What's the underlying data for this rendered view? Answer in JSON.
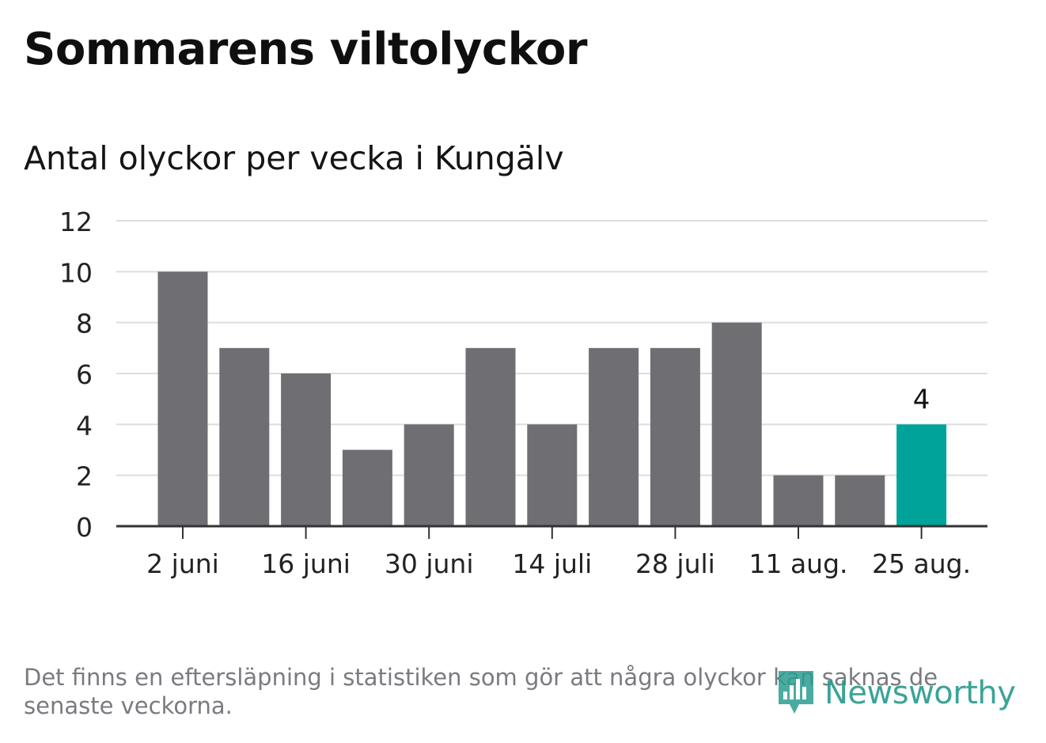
{
  "title": "Sommarens viltolyckor",
  "subtitle": "Antal olyckor per vecka i Kungälv",
  "footnote": "Det finns en eftersläpning i statistiken som gör att några olyckor kan saknas de senaste veckorna.",
  "logo": {
    "text": "Newsworthy",
    "icon": "newsworthy-chart-icon"
  },
  "colors": {
    "bar": "#6f6e73",
    "highlight": "#00a39a",
    "grid": "#dddddd",
    "axis": "#333333",
    "tick_text": "#222222"
  },
  "chart_data": {
    "type": "bar",
    "x": [
      "2 juni",
      "9 juni",
      "16 juni",
      "23 juni",
      "30 juni",
      "7 juli",
      "14 juli",
      "21 juli",
      "28 juli",
      "4 aug.",
      "11 aug.",
      "18 aug.",
      "25 aug."
    ],
    "values": [
      10,
      7,
      6,
      3,
      4,
      7,
      4,
      7,
      7,
      8,
      2,
      2,
      4
    ],
    "x_tick_labels": [
      "2 juni",
      "16 juni",
      "30 juni",
      "14 juli",
      "28 juli",
      "11 aug.",
      "25 aug."
    ],
    "highlight_index": 12,
    "data_labels": [
      {
        "index": 12,
        "text": "4"
      }
    ],
    "ylim": [
      0,
      12
    ],
    "y_ticks": [
      0,
      2,
      4,
      6,
      8,
      10,
      12
    ],
    "grid": true,
    "xlabel": "",
    "ylabel": ""
  }
}
